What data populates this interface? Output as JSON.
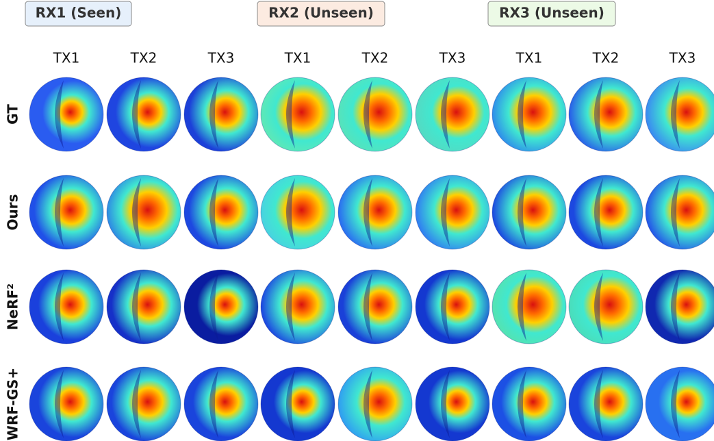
{
  "groups": [
    "RX1 (Seen)",
    "RX2 (Unseen)",
    "RX3 (Unseen)"
  ],
  "columns": [
    "TX1",
    "TX2",
    "TX3",
    "TX1",
    "TX2",
    "TX3",
    "TX1",
    "TX2",
    "TX3"
  ],
  "rows": [
    "GT",
    "Ours",
    "NeRF²",
    "WRF-GS+"
  ]
}
